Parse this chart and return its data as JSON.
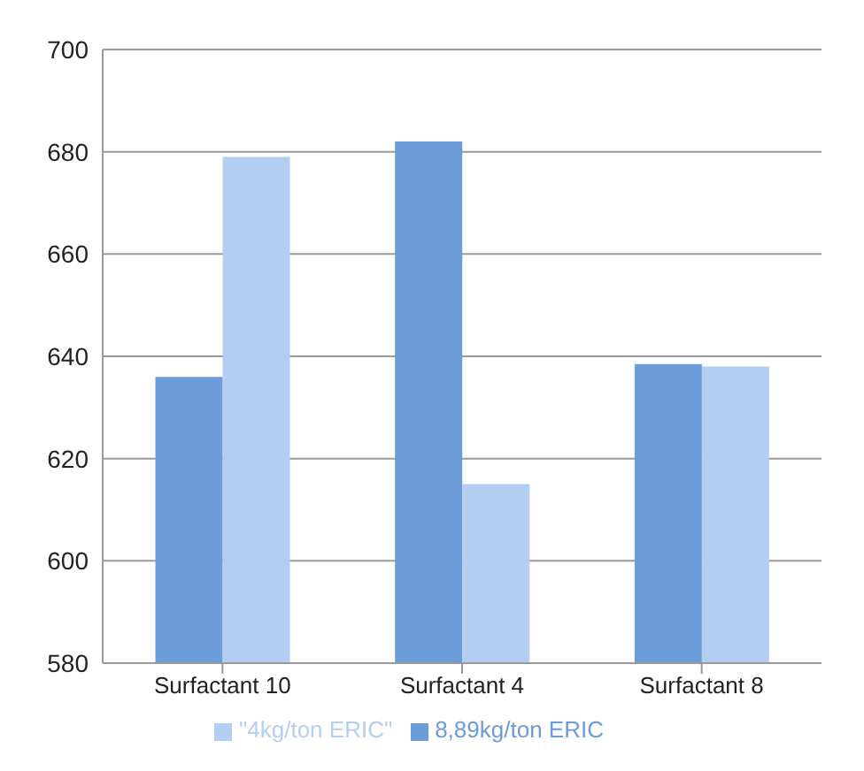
{
  "chart_data": {
    "type": "bar",
    "categories": [
      "Surfactant 10",
      "Surfactant 4",
      "Surfactant 8"
    ],
    "series": [
      {
        "name": "8,89kg/ton ERIC",
        "color": "#6b9bd8",
        "values": [
          636,
          682,
          638.5
        ]
      },
      {
        "name": "\"4kg/ton ERIC\"",
        "color": "#b4cef2",
        "values": [
          679,
          615,
          638
        ]
      }
    ],
    "ylim": [
      580,
      700
    ],
    "yticks": [
      580,
      600,
      620,
      640,
      660,
      680,
      700
    ],
    "grid": "y",
    "legend": "bottom"
  }
}
